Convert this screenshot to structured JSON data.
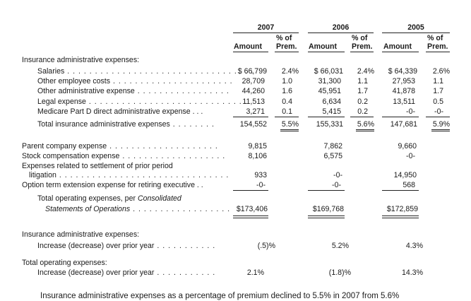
{
  "top_fragment": "(        ,        )",
  "years": [
    "2007",
    "2006",
    "2005"
  ],
  "col_amount": "Amount",
  "col_pct_line1": "% of",
  "col_pct_line2": "Prem.",
  "section1_label": "Insurance administrative expenses:",
  "rows": [
    {
      "label": "Salaries",
      "a07": "$ 66,799",
      "p07": "2.4%",
      "a06": "$ 66,031",
      "p06": "2.4%",
      "a05": "$ 64,339",
      "p05": "2.6%"
    },
    {
      "label": "Other employee costs",
      "a07": "28,709",
      "p07": "1.0",
      "a06": "31,300",
      "p06": "1.1",
      "a05": "27,953",
      "p05": "1.1"
    },
    {
      "label": "Other administrative expense",
      "a07": "44,260",
      "p07": "1.6",
      "a06": "45,951",
      "p06": "1.7",
      "a05": "41,878",
      "p05": "1.7"
    },
    {
      "label": "Legal expense",
      "a07": "11,513",
      "p07": "0.4",
      "a06": "6,634",
      "p06": "0.2",
      "a05": "13,511",
      "p05": "0.5"
    },
    {
      "label": "Medicare Part D direct administrative expense",
      "a07": "3,271",
      "p07": "0.1",
      "a06": "5,415",
      "p06": "0.2",
      "a05": "-0-",
      "p05": "-0-"
    }
  ],
  "total_admin": {
    "label": "Total insurance administrative expenses",
    "a07": "154,552",
    "p07": "5.5%",
    "a06": "155,331",
    "p06": "5.6%",
    "a05": "147,681",
    "p05": "5.9%"
  },
  "other_rows": [
    {
      "label": "Parent company expense",
      "a07": "9,815",
      "a06": "7,862",
      "a05": "9,660"
    },
    {
      "label": "Stock compensation expense",
      "a07": "8,106",
      "a06": "6,575",
      "a05": "-0-"
    }
  ],
  "settlement": {
    "line1": "Expenses related to settlement of prior period",
    "line2": "litigation",
    "a07": "933",
    "a06": "-0-",
    "a05": "14,950"
  },
  "option_row": {
    "label": "Option term extension expense for retiring executive",
    "a07": "-0-",
    "a06": "-0-",
    "a05": "568"
  },
  "total_opex": {
    "line1": "Total operating expenses, per",
    "line1_it": "Consolidated",
    "line2_it": "Statements of Operations",
    "a07": "$173,406",
    "a06": "$169,768",
    "a05": "$172,859"
  },
  "inc1_head": "Insurance administrative expenses:",
  "inc1": {
    "label": "Increase (decrease) over prior year",
    "v07": "(.5)%",
    "v06": "5.2%",
    "v05": "4.3%"
  },
  "inc2_head": "Total operating expenses:",
  "inc2": {
    "label": "Increase (decrease) over prior year",
    "v07": "2.1%",
    "v06": "(1.8)%",
    "v05": "14.3%"
  },
  "bottom_text": "Insurance administrative expenses as a percentage of premium declined to 5.5% in 2007 from 5.6%"
}
